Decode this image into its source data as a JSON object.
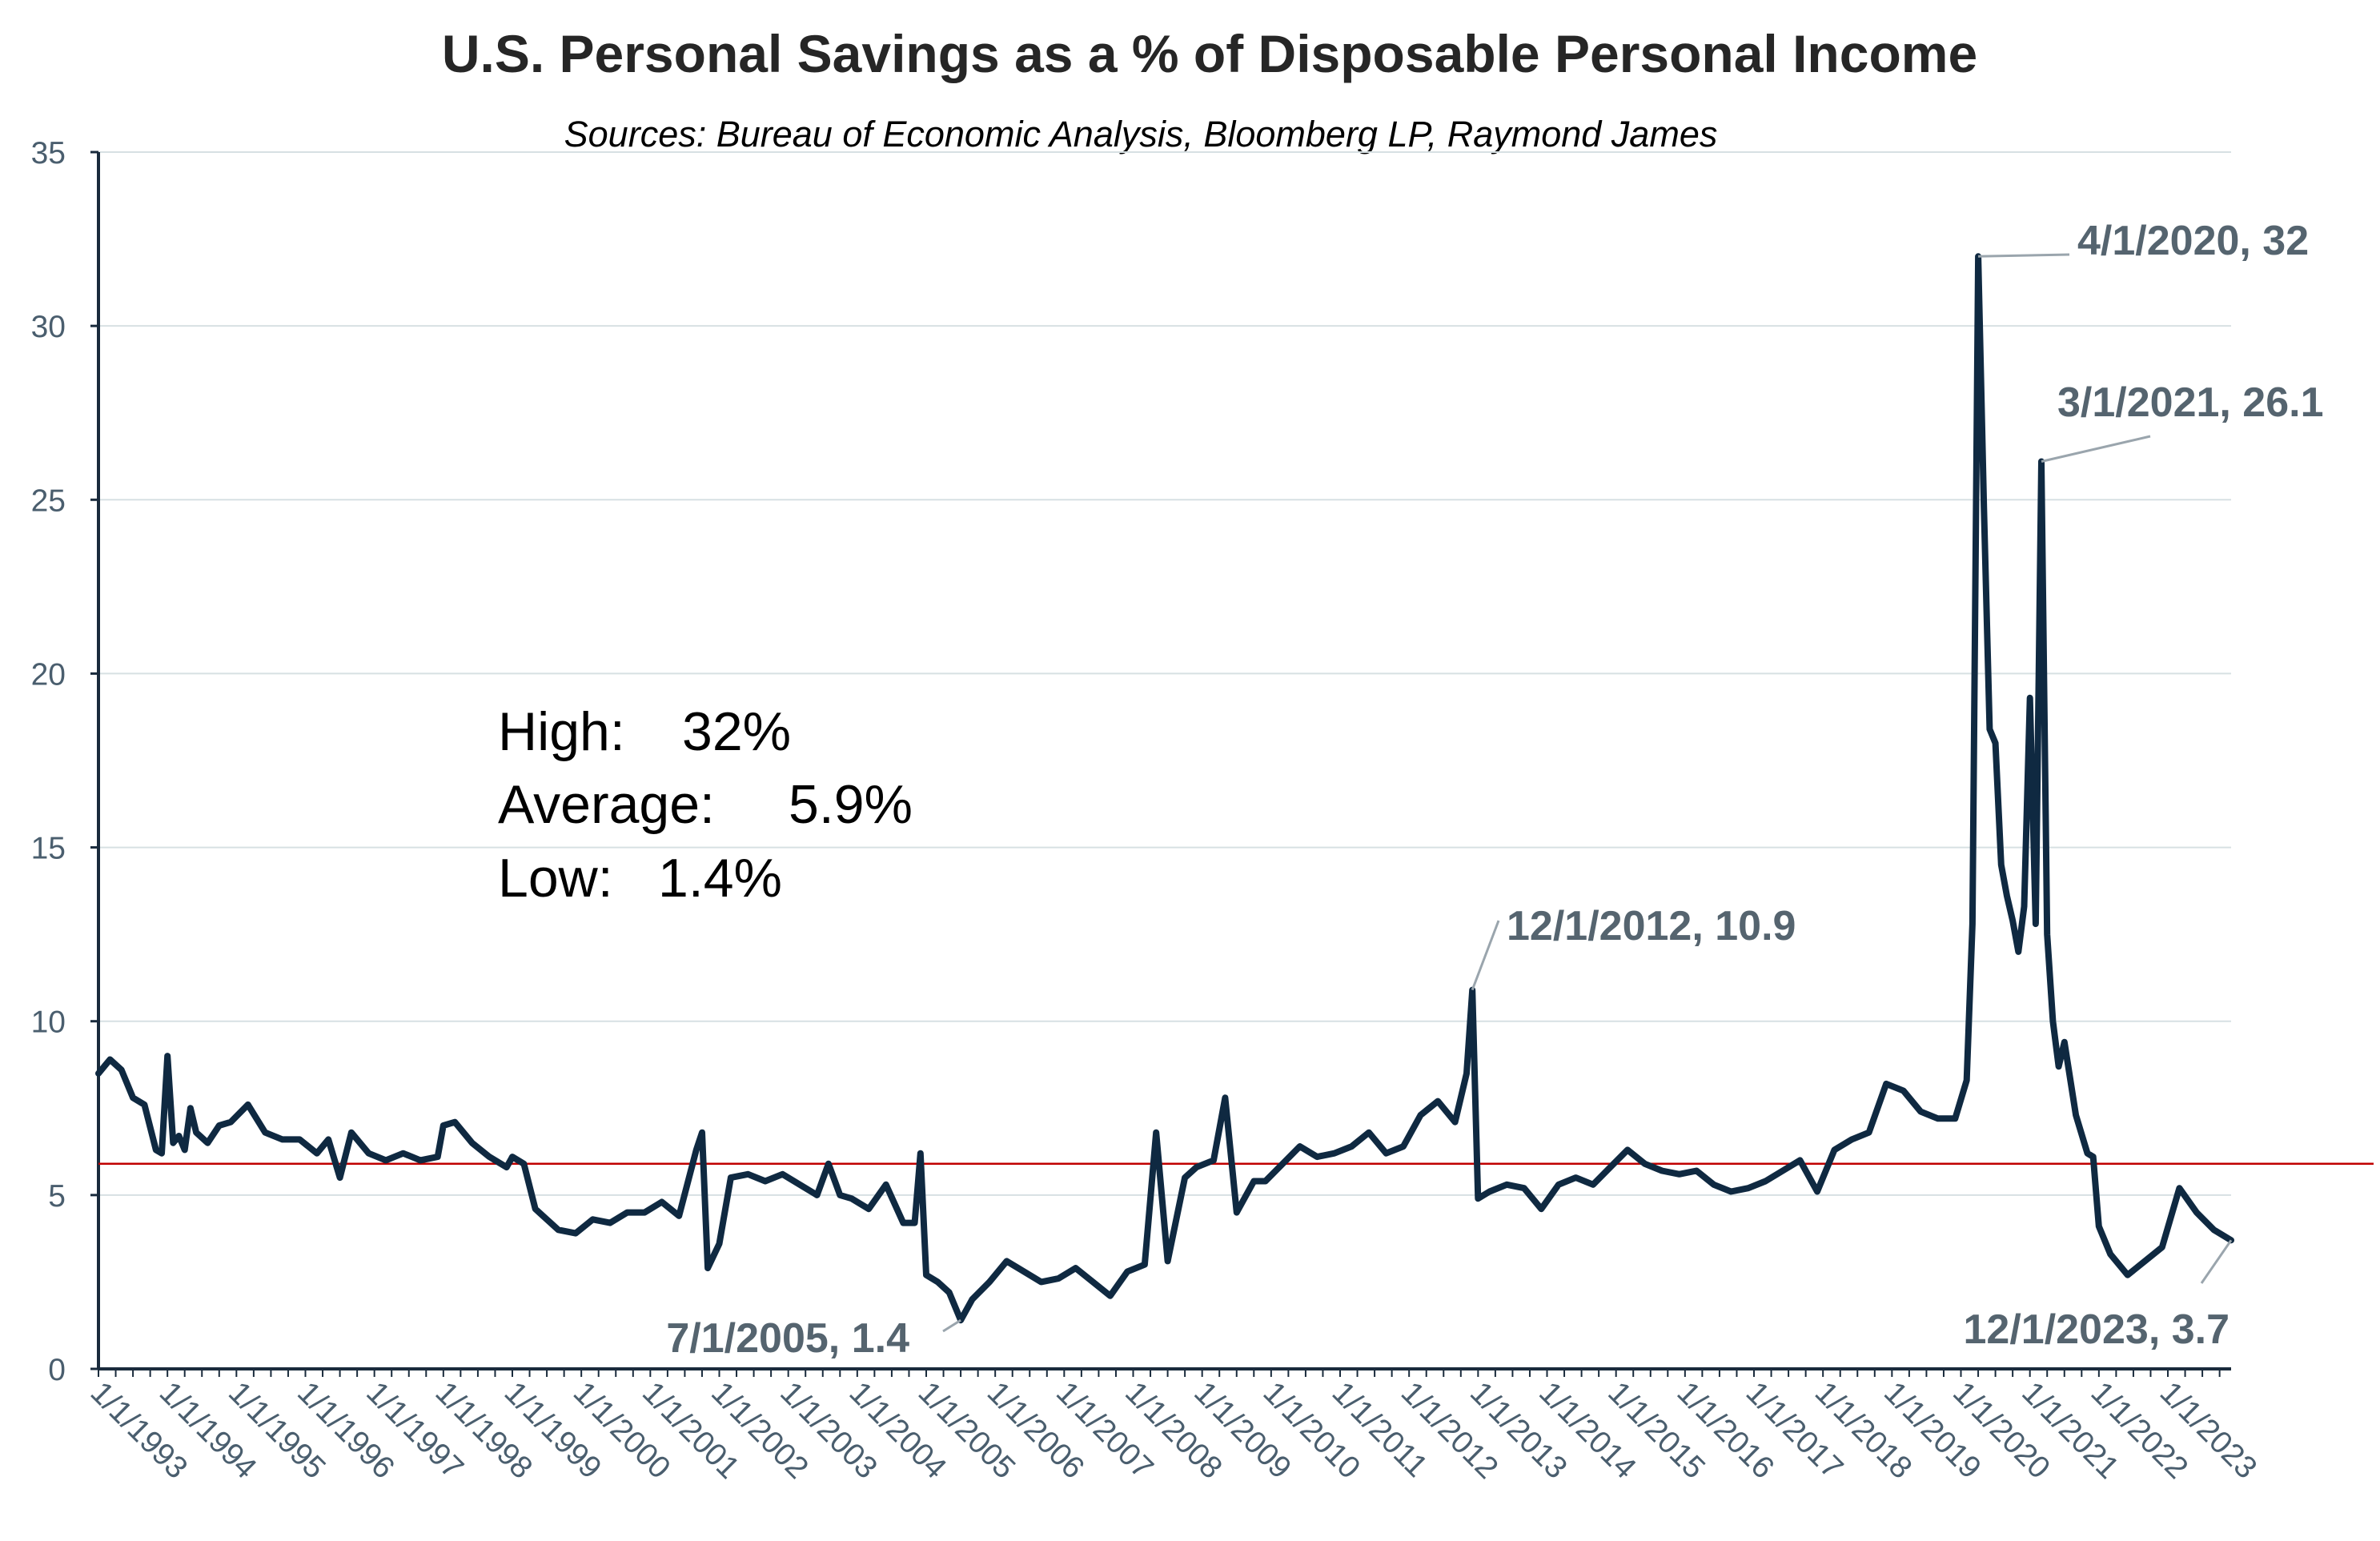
{
  "colors": {
    "series": "#0f2941",
    "average_line": "#c00000",
    "gridline": "#d7e0e3",
    "axis": "#1a2b3c",
    "tick_text": "#4a5e6e",
    "annotation_text": "#55646f",
    "leader_line": "#9aa5ad",
    "average_value": "#c00000"
  },
  "stats": {
    "high_label": "High:",
    "high_value": "32%",
    "average_label": "Average:",
    "average_value": "5.9%",
    "low_label": "Low:",
    "low_value": "1.4%"
  },
  "chart_data": {
    "type": "line",
    "title": "U.S. Personal Savings as a % of Disposable Personal Income",
    "subtitle": "Sources: Bureau of Economic Analysis, Bloomberg LP, Raymond James",
    "xlabel": "",
    "ylabel": "",
    "ylim": [
      0,
      35
    ],
    "yticks": [
      0,
      5,
      10,
      15,
      20,
      25,
      30,
      35
    ],
    "xlim": [
      "1/1/1993",
      "12/1/2023"
    ],
    "xticks": [
      "1/1/1993",
      "1/1/1994",
      "1/1/1995",
      "1/1/1996",
      "1/1/1997",
      "1/1/1998",
      "1/1/1999",
      "1/1/2000",
      "1/1/2001",
      "1/1/2002",
      "1/1/2003",
      "1/1/2004",
      "1/1/2005",
      "1/1/2006",
      "1/1/2007",
      "1/1/2008",
      "1/1/2009",
      "1/1/2010",
      "1/1/2011",
      "1/1/2012",
      "1/1/2013",
      "1/1/2014",
      "1/1/2015",
      "1/1/2016",
      "1/1/2017",
      "1/1/2018",
      "1/1/2019",
      "1/1/2020",
      "1/1/2021",
      "1/1/2022",
      "1/1/2023"
    ],
    "grid": true,
    "reference_line": {
      "value": 5.9
    },
    "series": [
      {
        "points": [
          [
            "1/1/1993",
            8.5
          ],
          [
            "3/1/1993",
            8.9
          ],
          [
            "5/1/1993",
            8.6
          ],
          [
            "7/1/1993",
            7.8
          ],
          [
            "9/1/1993",
            7.6
          ],
          [
            "11/1/1993",
            6.3
          ],
          [
            "12/1/1993",
            6.2
          ],
          [
            "1/1/1994",
            9.0
          ],
          [
            "2/1/1994",
            6.5
          ],
          [
            "3/1/1994",
            6.7
          ],
          [
            "4/1/1994",
            6.3
          ],
          [
            "5/1/1994",
            7.5
          ],
          [
            "6/1/1994",
            6.8
          ],
          [
            "8/1/1994",
            6.5
          ],
          [
            "10/1/1994",
            7.0
          ],
          [
            "12/1/1994",
            7.1
          ],
          [
            "3/1/1995",
            7.6
          ],
          [
            "6/1/1995",
            6.8
          ],
          [
            "9/1/1995",
            6.6
          ],
          [
            "12/1/1995",
            6.6
          ],
          [
            "3/1/1996",
            6.2
          ],
          [
            "5/1/1996",
            6.6
          ],
          [
            "7/1/1996",
            5.5
          ],
          [
            "9/1/1996",
            6.8
          ],
          [
            "12/1/1996",
            6.2
          ],
          [
            "3/1/1997",
            6.0
          ],
          [
            "6/1/1997",
            6.2
          ],
          [
            "9/1/1997",
            6.0
          ],
          [
            "12/1/1997",
            6.1
          ],
          [
            "1/1/1998",
            7.0
          ],
          [
            "3/1/1998",
            7.1
          ],
          [
            "6/1/1998",
            6.5
          ],
          [
            "9/1/1998",
            6.1
          ],
          [
            "12/1/1998",
            5.8
          ],
          [
            "1/1/1999",
            6.1
          ],
          [
            "3/1/1999",
            5.9
          ],
          [
            "5/1/1999",
            4.6
          ],
          [
            "7/1/1999",
            4.3
          ],
          [
            "9/1/1999",
            4.0
          ],
          [
            "12/1/1999",
            3.9
          ],
          [
            "3/1/2000",
            4.3
          ],
          [
            "6/1/2000",
            4.2
          ],
          [
            "9/1/2000",
            4.5
          ],
          [
            "12/1/2000",
            4.5
          ],
          [
            "3/1/2001",
            4.8
          ],
          [
            "6/1/2001",
            4.4
          ],
          [
            "9/1/2001",
            6.3
          ],
          [
            "10/1/2001",
            6.8
          ],
          [
            "11/1/2001",
            2.9
          ],
          [
            "1/1/2002",
            3.6
          ],
          [
            "3/1/2002",
            5.5
          ],
          [
            "6/1/2002",
            5.6
          ],
          [
            "9/1/2002",
            5.4
          ],
          [
            "12/1/2002",
            5.6
          ],
          [
            "3/1/2003",
            5.3
          ],
          [
            "6/1/2003",
            5.0
          ],
          [
            "8/1/2003",
            5.9
          ],
          [
            "10/1/2003",
            5.0
          ],
          [
            "12/1/2003",
            4.9
          ],
          [
            "3/1/2004",
            4.6
          ],
          [
            "6/1/2004",
            5.3
          ],
          [
            "9/1/2004",
            4.2
          ],
          [
            "11/1/2004",
            4.2
          ],
          [
            "12/1/2004",
            6.2
          ],
          [
            "1/1/2005",
            2.7
          ],
          [
            "3/1/2005",
            2.5
          ],
          [
            "5/1/2005",
            2.2
          ],
          [
            "7/1/2005",
            1.4
          ],
          [
            "9/1/2005",
            2.0
          ],
          [
            "12/1/2005",
            2.5
          ],
          [
            "3/1/2006",
            3.1
          ],
          [
            "6/1/2006",
            2.8
          ],
          [
            "9/1/2006",
            2.5
          ],
          [
            "12/1/2006",
            2.6
          ],
          [
            "3/1/2007",
            2.9
          ],
          [
            "6/1/2007",
            2.5
          ],
          [
            "9/1/2007",
            2.1
          ],
          [
            "12/1/2007",
            2.8
          ],
          [
            "3/1/2008",
            3.0
          ],
          [
            "5/1/2008",
            6.8
          ],
          [
            "7/1/2008",
            3.1
          ],
          [
            "10/1/2008",
            5.5
          ],
          [
            "12/1/2008",
            5.8
          ],
          [
            "3/1/2009",
            6.0
          ],
          [
            "5/1/2009",
            7.8
          ],
          [
            "7/1/2009",
            4.5
          ],
          [
            "10/1/2009",
            5.4
          ],
          [
            "12/1/2009",
            5.4
          ],
          [
            "3/1/2010",
            5.9
          ],
          [
            "6/1/2010",
            6.4
          ],
          [
            "9/1/2010",
            6.1
          ],
          [
            "12/1/2010",
            6.2
          ],
          [
            "3/1/2011",
            6.4
          ],
          [
            "6/1/2011",
            6.8
          ],
          [
            "9/1/2011",
            6.2
          ],
          [
            "12/1/2011",
            6.4
          ],
          [
            "3/1/2012",
            7.3
          ],
          [
            "6/1/2012",
            7.7
          ],
          [
            "9/1/2012",
            7.1
          ],
          [
            "11/1/2012",
            8.5
          ],
          [
            "12/1/2012",
            10.9
          ],
          [
            "1/1/2013",
            4.9
          ],
          [
            "3/1/2013",
            5.1
          ],
          [
            "6/1/2013",
            5.3
          ],
          [
            "9/1/2013",
            5.2
          ],
          [
            "12/1/2013",
            4.6
          ],
          [
            "3/1/2014",
            5.3
          ],
          [
            "6/1/2014",
            5.5
          ],
          [
            "9/1/2014",
            5.3
          ],
          [
            "12/1/2014",
            5.8
          ],
          [
            "3/1/2015",
            6.3
          ],
          [
            "6/1/2015",
            5.9
          ],
          [
            "9/1/2015",
            5.7
          ],
          [
            "12/1/2015",
            5.6
          ],
          [
            "3/1/2016",
            5.7
          ],
          [
            "6/1/2016",
            5.3
          ],
          [
            "9/1/2016",
            5.1
          ],
          [
            "12/1/2016",
            5.2
          ],
          [
            "3/1/2017",
            5.4
          ],
          [
            "6/1/2017",
            5.7
          ],
          [
            "9/1/2017",
            6.0
          ],
          [
            "12/1/2017",
            5.1
          ],
          [
            "3/1/2018",
            6.3
          ],
          [
            "6/1/2018",
            6.6
          ],
          [
            "9/1/2018",
            6.8
          ],
          [
            "12/1/2018",
            8.2
          ],
          [
            "3/1/2019",
            8.0
          ],
          [
            "6/1/2019",
            7.4
          ],
          [
            "9/1/2019",
            7.2
          ],
          [
            "12/1/2019",
            7.2
          ],
          [
            "2/1/2020",
            8.3
          ],
          [
            "3/1/2020",
            12.8
          ],
          [
            "4/1/2020",
            32.0
          ],
          [
            "5/1/2020",
            24.8
          ],
          [
            "6/1/2020",
            18.4
          ],
          [
            "7/1/2020",
            18.0
          ],
          [
            "8/1/2020",
            14.5
          ],
          [
            "9/1/2020",
            13.6
          ],
          [
            "10/1/2020",
            12.9
          ],
          [
            "11/1/2020",
            12.0
          ],
          [
            "12/1/2020",
            13.3
          ],
          [
            "1/1/2021",
            19.3
          ],
          [
            "2/1/2021",
            12.8
          ],
          [
            "3/1/2021",
            26.1
          ],
          [
            "4/1/2021",
            12.5
          ],
          [
            "5/1/2021",
            10.0
          ],
          [
            "6/1/2021",
            8.7
          ],
          [
            "7/1/2021",
            9.4
          ],
          [
            "9/1/2021",
            7.3
          ],
          [
            "11/1/2021",
            6.2
          ],
          [
            "12/1/2021",
            6.1
          ],
          [
            "1/1/2022",
            4.1
          ],
          [
            "3/1/2022",
            3.3
          ],
          [
            "6/1/2022",
            2.7
          ],
          [
            "9/1/2022",
            3.1
          ],
          [
            "12/1/2022",
            3.5
          ],
          [
            "3/1/2023",
            5.2
          ],
          [
            "6/1/2023",
            4.5
          ],
          [
            "9/1/2023",
            4.0
          ],
          [
            "12/1/2023",
            3.7
          ]
        ]
      }
    ],
    "annotations": [
      {
        "label": "4/1/2020, 32",
        "x": "4/1/2020",
        "y": 32.0
      },
      {
        "label": "3/1/2021, 26.1",
        "x": "3/1/2021",
        "y": 26.1
      },
      {
        "label": "12/1/2012, 10.9",
        "x": "12/1/2012",
        "y": 10.9
      },
      {
        "label": "7/1/2005, 1.4",
        "x": "7/1/2005",
        "y": 1.4
      },
      {
        "label": "12/1/2023, 3.7",
        "x": "12/1/2023",
        "y": 3.7
      }
    ]
  }
}
